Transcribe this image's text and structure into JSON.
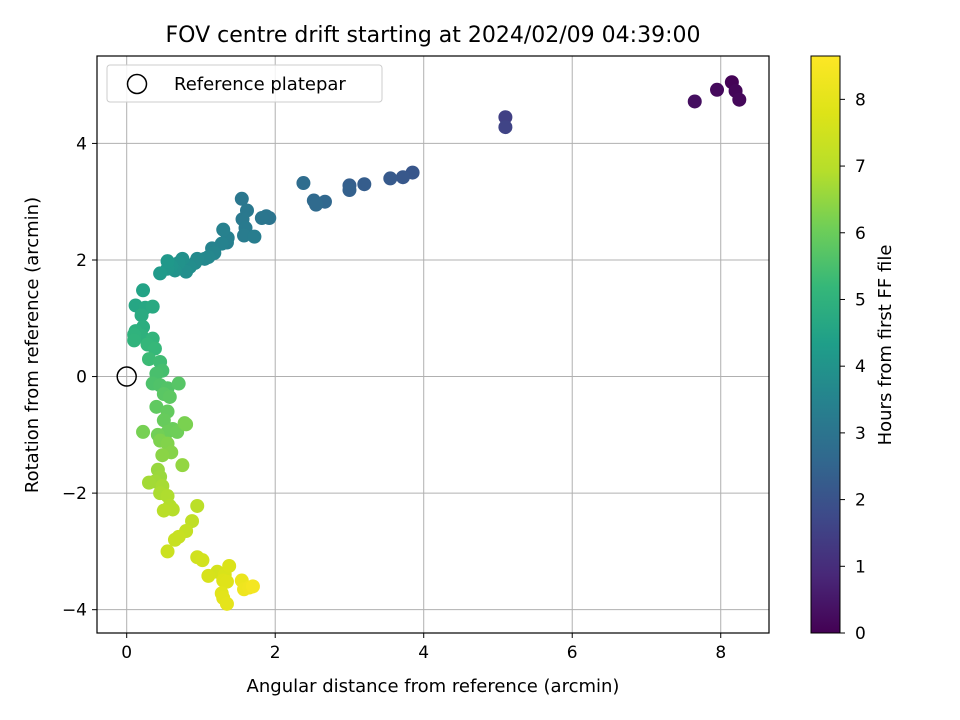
{
  "chart_data": {
    "type": "scatter",
    "title": "FOV centre drift starting at 2024/02/09 04:39:00",
    "xlabel": "Angular distance from reference (arcmin)",
    "ylabel": "Rotation from reference (arcmin)",
    "xlim": [
      -0.4,
      8.65
    ],
    "ylim": [
      -4.4,
      5.5
    ],
    "x_ticks": [
      0,
      2,
      4,
      6,
      8
    ],
    "y_ticks": [
      -4,
      -2,
      0,
      2,
      4
    ],
    "grid": true,
    "legend": {
      "placement": "top-left",
      "entries": [
        "Reference platepar"
      ]
    },
    "reference_point": {
      "x": 0,
      "y": 0
    },
    "colorbar": {
      "label": "Hours from first FF file",
      "colormap": "viridis",
      "range": [
        0,
        8.65
      ],
      "ticks": [
        0,
        1,
        2,
        3,
        4,
        5,
        6,
        7,
        8
      ]
    },
    "points": [
      [
        8.15,
        5.05,
        0.05
      ],
      [
        8.2,
        4.9,
        0.1
      ],
      [
        8.25,
        4.75,
        0.15
      ],
      [
        7.95,
        4.92,
        0.2
      ],
      [
        7.65,
        4.72,
        0.3
      ],
      [
        5.1,
        4.45,
        1.5
      ],
      [
        5.1,
        4.28,
        1.6
      ],
      [
        3.85,
        3.5,
        2.1
      ],
      [
        3.72,
        3.42,
        2.15
      ],
      [
        3.55,
        3.4,
        2.2
      ],
      [
        3.2,
        3.3,
        2.3
      ],
      [
        3.0,
        3.28,
        2.35
      ],
      [
        3.0,
        3.2,
        2.4
      ],
      [
        2.67,
        3.0,
        2.6
      ],
      [
        2.52,
        3.02,
        2.65
      ],
      [
        2.55,
        2.95,
        2.7
      ],
      [
        2.38,
        3.32,
        2.75
      ],
      [
        1.92,
        2.72,
        3.0
      ],
      [
        1.88,
        2.75,
        3.02
      ],
      [
        1.82,
        2.72,
        3.05
      ],
      [
        1.55,
        3.05,
        3.1
      ],
      [
        1.62,
        2.85,
        3.12
      ],
      [
        1.56,
        2.7,
        3.15
      ],
      [
        1.6,
        2.55,
        3.2
      ],
      [
        1.58,
        2.42,
        3.25
      ],
      [
        1.72,
        2.4,
        3.28
      ],
      [
        1.35,
        2.3,
        3.35
      ],
      [
        1.36,
        2.38,
        3.38
      ],
      [
        1.3,
        2.52,
        3.42
      ],
      [
        1.28,
        2.28,
        3.45
      ],
      [
        1.15,
        2.2,
        3.5
      ],
      [
        1.18,
        2.12,
        3.55
      ],
      [
        1.1,
        2.05,
        3.6
      ],
      [
        1.05,
        2.02,
        3.65
      ],
      [
        0.95,
        2.02,
        3.7
      ],
      [
        0.92,
        1.95,
        3.75
      ],
      [
        0.85,
        1.88,
        3.8
      ],
      [
        0.8,
        1.8,
        3.85
      ],
      [
        0.75,
        2.02,
        3.9
      ],
      [
        0.7,
        1.95,
        3.95
      ],
      [
        0.65,
        1.82,
        4.0
      ],
      [
        0.6,
        1.9,
        4.05
      ],
      [
        0.55,
        1.85,
        4.1
      ],
      [
        0.55,
        1.98,
        4.15
      ],
      [
        0.45,
        1.77,
        4.2
      ],
      [
        0.22,
        1.48,
        4.5
      ],
      [
        0.12,
        1.22,
        4.6
      ],
      [
        0.25,
        1.18,
        4.65
      ],
      [
        0.35,
        1.2,
        4.7
      ],
      [
        0.2,
        1.05,
        4.75
      ],
      [
        0.22,
        0.85,
        4.85
      ],
      [
        0.12,
        0.78,
        4.9
      ],
      [
        0.2,
        0.7,
        4.95
      ],
      [
        0.1,
        0.72,
        5.0
      ],
      [
        0.1,
        0.62,
        5.05
      ],
      [
        0.35,
        0.65,
        5.1
      ],
      [
        0.28,
        0.55,
        5.15
      ],
      [
        0.38,
        0.48,
        5.2
      ],
      [
        0.3,
        0.3,
        5.3
      ],
      [
        0.45,
        0.25,
        5.35
      ],
      [
        0.48,
        0.1,
        5.45
      ],
      [
        0.4,
        0.05,
        5.5
      ],
      [
        0.35,
        -0.12,
        5.55
      ],
      [
        0.45,
        -0.15,
        5.6
      ],
      [
        0.55,
        -0.2,
        5.65
      ],
      [
        0.7,
        -0.12,
        5.7
      ],
      [
        0.5,
        -0.3,
        5.75
      ],
      [
        0.58,
        -0.35,
        5.8
      ],
      [
        0.4,
        -0.52,
        5.85
      ],
      [
        0.55,
        -0.6,
        5.9
      ],
      [
        0.5,
        -0.75,
        5.95
      ],
      [
        0.62,
        -0.9,
        6.0
      ],
      [
        0.55,
        -0.95,
        6.02
      ],
      [
        0.68,
        -0.95,
        6.05
      ],
      [
        0.42,
        -1.0,
        6.1
      ],
      [
        0.22,
        -0.95,
        6.15
      ],
      [
        0.78,
        -0.8,
        6.18
      ],
      [
        0.8,
        -0.82,
        6.2
      ],
      [
        0.45,
        -1.1,
        6.25
      ],
      [
        0.55,
        -1.15,
        6.3
      ],
      [
        0.6,
        -1.3,
        6.35
      ],
      [
        0.48,
        -1.35,
        6.4
      ],
      [
        0.75,
        -1.52,
        6.5
      ],
      [
        0.42,
        -1.6,
        6.55
      ],
      [
        0.45,
        -1.72,
        6.6
      ],
      [
        0.38,
        -1.8,
        6.65
      ],
      [
        0.3,
        -1.82,
        6.7
      ],
      [
        0.48,
        -1.88,
        6.75
      ],
      [
        0.45,
        -2.0,
        6.8
      ],
      [
        0.55,
        -2.05,
        6.85
      ],
      [
        0.58,
        -2.22,
        6.9
      ],
      [
        0.62,
        -2.28,
        6.95
      ],
      [
        0.5,
        -2.3,
        7.0
      ],
      [
        0.95,
        -2.22,
        7.05
      ],
      [
        0.88,
        -2.48,
        7.15
      ],
      [
        0.8,
        -2.65,
        7.25
      ],
      [
        0.65,
        -2.8,
        7.3
      ],
      [
        0.7,
        -2.75,
        7.32
      ],
      [
        0.55,
        -3.0,
        7.4
      ],
      [
        0.95,
        -3.1,
        7.5
      ],
      [
        1.02,
        -3.15,
        7.55
      ],
      [
        1.22,
        -3.35,
        7.6
      ],
      [
        1.1,
        -3.42,
        7.65
      ],
      [
        1.32,
        -3.4,
        7.7
      ],
      [
        1.38,
        -3.25,
        7.75
      ],
      [
        1.3,
        -3.5,
        7.8
      ],
      [
        1.35,
        -3.52,
        7.85
      ],
      [
        1.28,
        -3.72,
        7.9
      ],
      [
        1.3,
        -3.8,
        7.95
      ],
      [
        1.35,
        -3.9,
        8.0
      ],
      [
        1.55,
        -3.5,
        8.15
      ],
      [
        1.58,
        -3.65,
        8.25
      ],
      [
        1.65,
        -3.62,
        8.3
      ],
      [
        1.7,
        -3.6,
        8.4
      ]
    ]
  }
}
